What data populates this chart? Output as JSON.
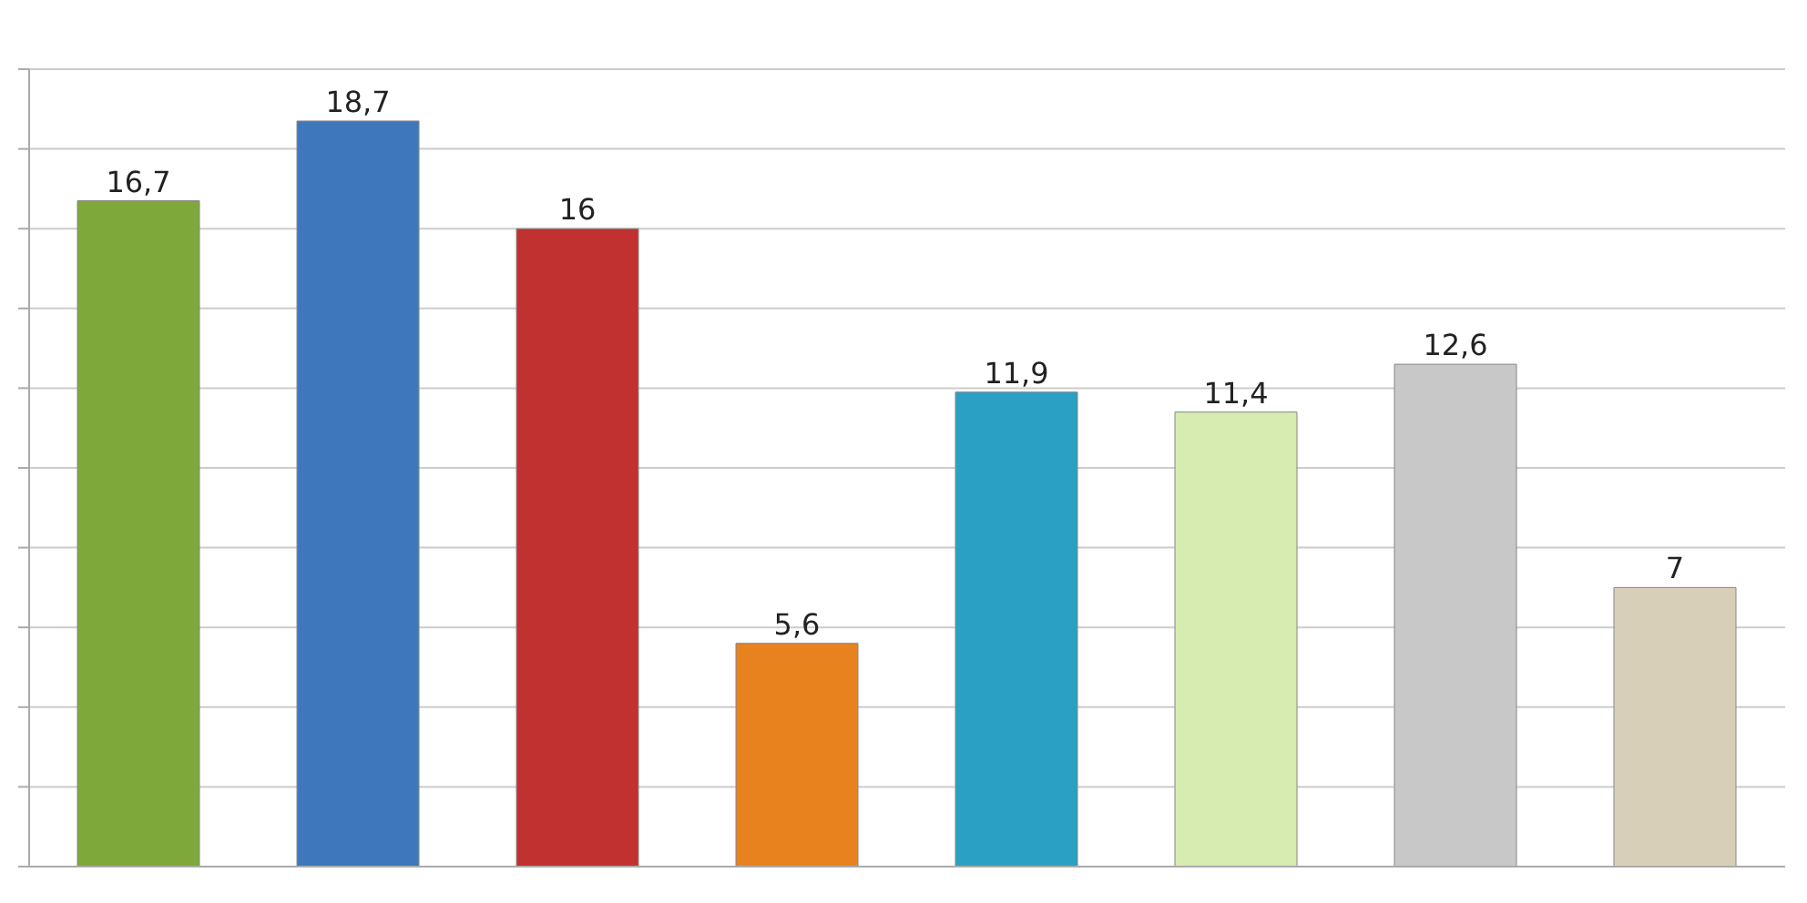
{
  "chart_data": {
    "type": "bar",
    "categories": [
      null,
      null,
      null,
      null,
      null,
      null,
      null,
      null
    ],
    "values": [
      16.7,
      18.7,
      16,
      5.6,
      11.9,
      11.4,
      12.6,
      7
    ],
    "colors": [
      "#7fa83a",
      "#3f77bd",
      "#c0312f",
      "#e8821e",
      "#2aa0c4",
      "#d6ecb0",
      "#c8c8c8",
      "#d8cfb8"
    ],
    "value_labels": [
      "16,7",
      "18,7",
      "16",
      "5,6",
      "11,9",
      "11,4",
      "12,6",
      "7"
    ],
    "ylim": [
      0,
      20
    ],
    "grid": "y"
  }
}
